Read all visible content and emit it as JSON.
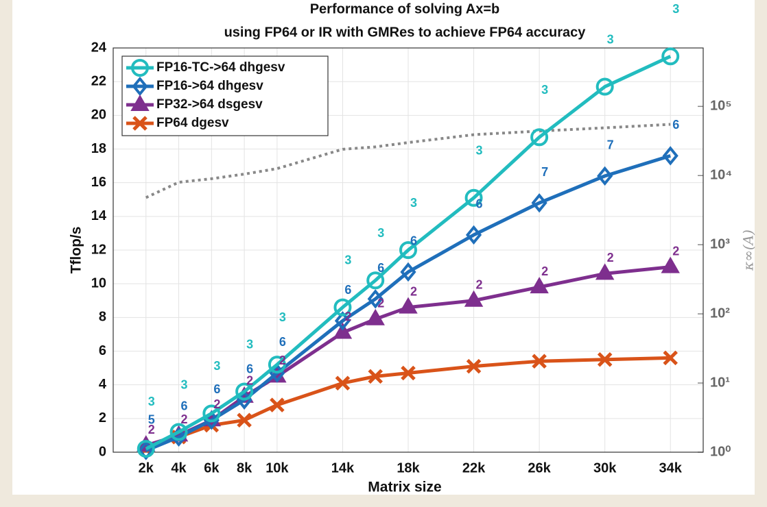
{
  "chart_data": {
    "type": "line",
    "title": "Performance of solving Ax=b",
    "subtitle": "using FP64 or IR with GMRes to achieve FP64 accuracy",
    "xlabel": "Matrix size",
    "ylabel": "Tflop/s",
    "y2label": "κ∞(A)",
    "x": [
      2000,
      4000,
      6000,
      8000,
      10000,
      14000,
      16000,
      18000,
      22000,
      26000,
      30000,
      34000
    ],
    "xlim": [
      0,
      36000
    ],
    "xticks": [
      {
        "value": 2000,
        "label": "2k"
      },
      {
        "value": 4000,
        "label": "4k"
      },
      {
        "value": 6000,
        "label": "6k"
      },
      {
        "value": 8000,
        "label": "8k"
      },
      {
        "value": 10000,
        "label": "10k"
      },
      {
        "value": 14000,
        "label": "14k"
      },
      {
        "value": 18000,
        "label": "18k"
      },
      {
        "value": 22000,
        "label": "22k"
      },
      {
        "value": 26000,
        "label": "26k"
      },
      {
        "value": 30000,
        "label": "30k"
      },
      {
        "value": 34000,
        "label": "34k"
      }
    ],
    "ylim": [
      0,
      24
    ],
    "yticks": [
      0,
      2,
      4,
      6,
      8,
      10,
      12,
      14,
      16,
      18,
      20,
      22,
      24
    ],
    "y2lim": [
      1,
      700000
    ],
    "y2log": true,
    "y2ticks": [
      {
        "value": 1,
        "label": "10⁰"
      },
      {
        "value": 10,
        "label": "10¹"
      },
      {
        "value": 100,
        "label": "10²"
      },
      {
        "value": 1000,
        "label": "10³"
      },
      {
        "value": 10000,
        "label": "10⁴"
      },
      {
        "value": 100000,
        "label": "10⁵"
      }
    ],
    "grid": true,
    "legend": "upper left",
    "series": [
      {
        "name": "FP16-TC->64 dhgesv",
        "color": "#22bcbf",
        "marker": "circle",
        "values": [
          0.2,
          1.2,
          2.3,
          3.6,
          5.2,
          8.6,
          10.2,
          12.0,
          15.1,
          18.7,
          21.7,
          23.5
        ],
        "iterations": [
          3,
          3,
          3,
          3,
          3,
          3,
          3,
          3,
          3,
          3,
          3,
          3
        ]
      },
      {
        "name": "FP16->64 dhgesv",
        "color": "#1f6fba",
        "marker": "diamond",
        "values": [
          0.1,
          0.9,
          1.9,
          3.1,
          4.7,
          7.8,
          9.1,
          10.7,
          12.9,
          14.8,
          16.4,
          17.6
        ],
        "iterations": [
          5,
          6,
          6,
          6,
          6,
          6,
          6,
          6,
          6,
          7,
          7,
          6
        ]
      },
      {
        "name": "FP32->64 dsgesv",
        "color": "#7e2f8e",
        "marker": "triangle",
        "values": [
          0.4,
          1.0,
          1.9,
          3.3,
          4.5,
          7.1,
          7.9,
          8.6,
          9.0,
          9.8,
          10.6,
          11.0
        ],
        "iterations": [
          2,
          2,
          2,
          2,
          2,
          2,
          2,
          2,
          2,
          2,
          2,
          2
        ]
      },
      {
        "name": "FP64 dgesv",
        "color": "#d95319",
        "marker": "x",
        "values": [
          0.2,
          0.9,
          1.6,
          1.9,
          2.8,
          4.1,
          4.5,
          4.7,
          5.1,
          5.4,
          5.5,
          5.6
        ]
      }
    ],
    "condition_series": {
      "color": "#888888",
      "axis": "y2",
      "values": [
        4800,
        8000,
        9000,
        10500,
        12600,
        24000,
        26000,
        30000,
        39000,
        44000,
        49000,
        55000
      ]
    }
  }
}
